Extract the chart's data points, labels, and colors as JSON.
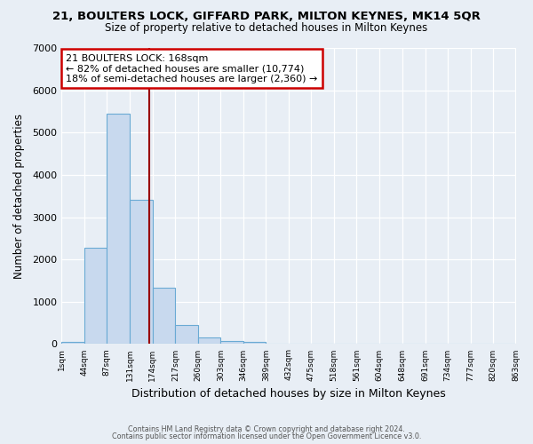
{
  "title1": "21, BOULTERS LOCK, GIFFARD PARK, MILTON KEYNES, MK14 5QR",
  "title2": "Size of property relative to detached houses in Milton Keynes",
  "xlabel": "Distribution of detached houses by size in Milton Keynes",
  "ylabel": "Number of detached properties",
  "bin_edges": [
    1,
    44,
    87,
    131,
    174,
    217,
    260,
    303,
    346,
    389,
    432,
    475,
    518,
    561,
    604,
    648,
    691,
    734,
    777,
    820,
    863
  ],
  "bin_labels": [
    "1sqm",
    "44sqm",
    "87sqm",
    "131sqm",
    "174sqm",
    "217sqm",
    "260sqm",
    "303sqm",
    "346sqm",
    "389sqm",
    "432sqm",
    "475sqm",
    "518sqm",
    "561sqm",
    "604sqm",
    "648sqm",
    "691sqm",
    "734sqm",
    "777sqm",
    "820sqm",
    "863sqm"
  ],
  "counts": [
    50,
    2280,
    5450,
    3420,
    1330,
    440,
    160,
    80,
    50,
    0,
    0,
    0,
    0,
    0,
    0,
    0,
    0,
    0,
    0,
    0
  ],
  "bar_color": "#c8d9ee",
  "bar_edge_color": "#6aaad4",
  "vline_x": 168,
  "vline_color": "#990000",
  "annotation_line1": "21 BOULTERS LOCK: 168sqm",
  "annotation_line2": "← 82% of detached houses are smaller (10,774)",
  "annotation_line3": "18% of semi-detached houses are larger (2,360) →",
  "annotation_box_color": "#ffffff",
  "annotation_box_edge": "#cc0000",
  "ylim": [
    0,
    7000
  ],
  "yticks": [
    0,
    1000,
    2000,
    3000,
    4000,
    5000,
    6000,
    7000
  ],
  "footer1": "Contains HM Land Registry data © Crown copyright and database right 2024.",
  "footer2": "Contains public sector information licensed under the Open Government Licence v3.0.",
  "bg_color": "#e8eef5",
  "plot_bg_color": "#e8eef5",
  "grid_color": "#ffffff",
  "title1_fontsize": 9.5,
  "title2_fontsize": 8.5,
  "xlabel_fontsize": 9.0,
  "ylabel_fontsize": 8.5,
  "xtick_fontsize": 6.5,
  "ytick_fontsize": 8.0,
  "annotation_fontsize": 8.0,
  "footer_fontsize": 5.8
}
